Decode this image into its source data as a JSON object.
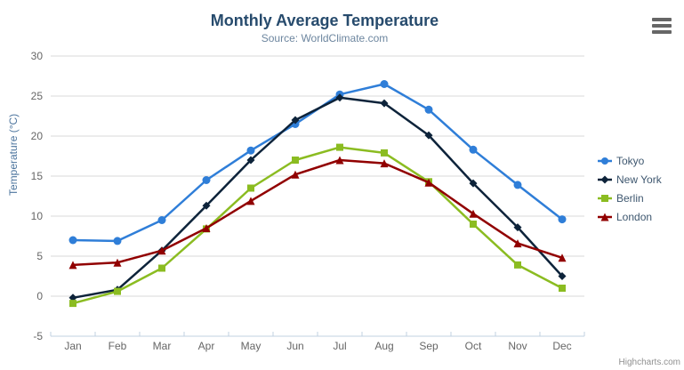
{
  "header": {
    "title": "Monthly Average Temperature",
    "subtitle": "Source: WorldClimate.com"
  },
  "chart_data": {
    "type": "line",
    "categories": [
      "Jan",
      "Feb",
      "Mar",
      "Apr",
      "May",
      "Jun",
      "Jul",
      "Aug",
      "Sep",
      "Oct",
      "Nov",
      "Dec"
    ],
    "series": [
      {
        "name": "Tokyo",
        "color": "#2f7ed8",
        "marker": "circle",
        "values": [
          7.0,
          6.9,
          9.5,
          14.5,
          18.2,
          21.5,
          25.2,
          26.5,
          23.3,
          18.3,
          13.9,
          9.6
        ]
      },
      {
        "name": "New York",
        "color": "#0d233a",
        "marker": "diamond",
        "values": [
          -0.2,
          0.8,
          5.7,
          11.3,
          17.0,
          22.0,
          24.8,
          24.1,
          20.1,
          14.1,
          8.6,
          2.5
        ]
      },
      {
        "name": "Berlin",
        "color": "#8bbc21",
        "marker": "square",
        "values": [
          -0.9,
          0.6,
          3.5,
          8.4,
          13.5,
          17.0,
          18.6,
          17.9,
          14.3,
          9.0,
          3.9,
          1.0
        ]
      },
      {
        "name": "London",
        "color": "#910000",
        "marker": "triangle",
        "values": [
          3.9,
          4.2,
          5.7,
          8.5,
          11.9,
          15.2,
          17.0,
          16.6,
          14.2,
          10.3,
          6.6,
          4.8
        ]
      }
    ],
    "xlabel": "",
    "ylabel": "Temperature (°C)",
    "ylim": [
      -5,
      30
    ],
    "ytick_step": 5,
    "yticks": [
      -5,
      0,
      5,
      10,
      15,
      20,
      25,
      30
    ],
    "grid": "horizontal",
    "legend_position": "right",
    "colors": {
      "title": "#274b6d",
      "subtitle": "#6d869f",
      "axis_labels": "#666666",
      "axis_title": "#4d759e",
      "grid_line": "#d8d8d8",
      "axis_line": "#c0d0e0",
      "legend_text": "#3e576f"
    }
  },
  "credits": {
    "text": "Highcharts.com"
  }
}
